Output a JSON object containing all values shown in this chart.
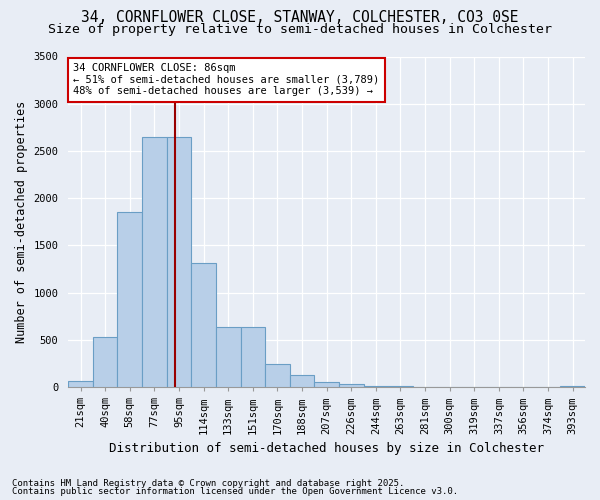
{
  "title1": "34, CORNFLOWER CLOSE, STANWAY, COLCHESTER, CO3 0SE",
  "title2": "Size of property relative to semi-detached houses in Colchester",
  "xlabel": "Distribution of semi-detached houses by size in Colchester",
  "ylabel": "Number of semi-detached properties",
  "categories": [
    "21sqm",
    "40sqm",
    "58sqm",
    "77sqm",
    "95sqm",
    "114sqm",
    "133sqm",
    "151sqm",
    "170sqm",
    "188sqm",
    "207sqm",
    "226sqm",
    "244sqm",
    "263sqm",
    "281sqm",
    "300sqm",
    "319sqm",
    "337sqm",
    "356sqm",
    "374sqm",
    "393sqm"
  ],
  "values": [
    70,
    530,
    1850,
    2650,
    2650,
    1310,
    640,
    640,
    240,
    130,
    55,
    30,
    15,
    10,
    5,
    3,
    2,
    1,
    1,
    1,
    15
  ],
  "bar_color": "#b8cfe8",
  "bar_edge_color": "#6a9ec5",
  "vline_index": 3.85,
  "vline_color": "#990000",
  "annotation_text": "34 CORNFLOWER CLOSE: 86sqm\n← 51% of semi-detached houses are smaller (3,789)\n48% of semi-detached houses are larger (3,539) →",
  "annotation_box_facecolor": "#ffffff",
  "annotation_box_edgecolor": "#cc0000",
  "background_color": "#e8edf5",
  "plot_bg_color": "#e8edf5",
  "ylim_max": 3500,
  "yticks": [
    0,
    500,
    1000,
    1500,
    2000,
    2500,
    3000,
    3500
  ],
  "footer1": "Contains HM Land Registry data © Crown copyright and database right 2025.",
  "footer2": "Contains public sector information licensed under the Open Government Licence v3.0.",
  "title_fontsize": 10.5,
  "subtitle_fontsize": 9.5,
  "ylabel_fontsize": 8.5,
  "xlabel_fontsize": 9,
  "tick_fontsize": 7.5,
  "footer_fontsize": 6.5,
  "ann_fontsize": 7.5
}
